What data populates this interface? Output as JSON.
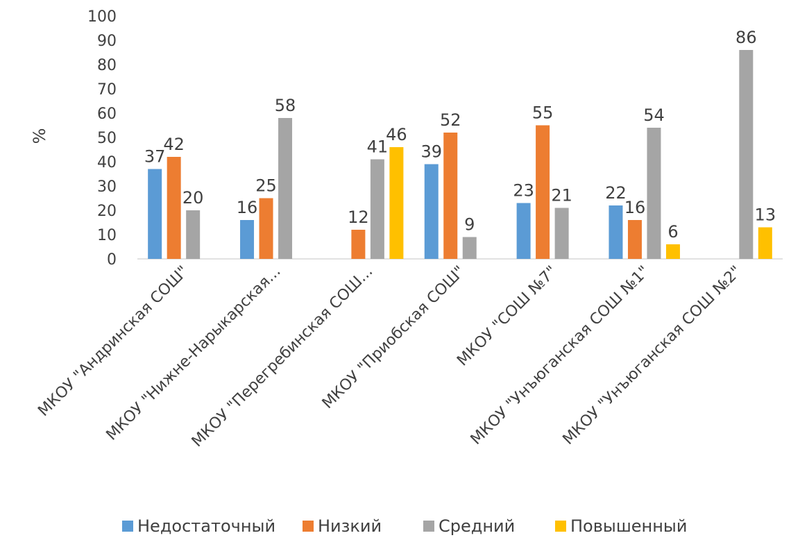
{
  "chart_data": {
    "type": "bar",
    "title": "",
    "xlabel": "",
    "ylabel": "%",
    "ylim": [
      0,
      100
    ],
    "yticks": [
      0,
      10,
      20,
      30,
      40,
      50,
      60,
      70,
      80,
      90,
      100
    ],
    "grid": false,
    "legend_position": "bottom",
    "categories": [
      "МКОУ \"Андринская СОШ\"",
      "МКОУ \"Нижне-Нарыкарская...",
      "МКОУ \"Перегребинская СОШ...",
      "МКОУ \"Приобская СОШ\"",
      "МКОУ \"СОШ №7\"",
      "МКОУ \"Унъюганская СОШ №1\"",
      "МКОУ \"Унъюганская СОШ №2\""
    ],
    "series": [
      {
        "name": "Недостаточный",
        "color": "#5B9BD5",
        "values": [
          37,
          16,
          null,
          39,
          23,
          22,
          null
        ]
      },
      {
        "name": "Низкий",
        "color": "#ED7D31",
        "values": [
          42,
          25,
          12,
          52,
          55,
          16,
          null
        ]
      },
      {
        "name": "Средний",
        "color": "#A5A5A5",
        "values": [
          20,
          58,
          41,
          9,
          21,
          54,
          86
        ]
      },
      {
        "name": "Повышенный",
        "color": "#FFC000",
        "values": [
          null,
          null,
          46,
          null,
          null,
          6,
          13
        ]
      }
    ]
  }
}
